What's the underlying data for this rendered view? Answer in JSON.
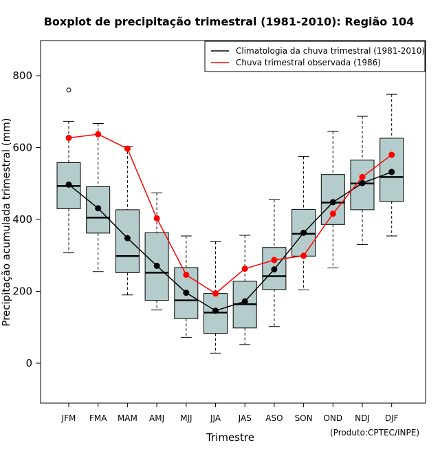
{
  "chart_data": {
    "type": "boxplot",
    "title": "Boxplot de precipitação trimestral (1981-2010): Região 104",
    "xlabel": "Trimestre",
    "ylabel": "Precipitação acumulada trimestral (mm)",
    "ylim": [
      -110,
      900
    ],
    "yticks": [
      0,
      200,
      400,
      600,
      800
    ],
    "categories": [
      "JFM",
      "FMA",
      "MAM",
      "AMJ",
      "MJJ",
      "JJA",
      "JAS",
      "ASO",
      "SON",
      "OND",
      "NDJ",
      "DJF"
    ],
    "boxes": [
      {
        "whisker_low": 307,
        "q1": 430,
        "median": 493,
        "q3": 558,
        "whisker_high": 673,
        "outliers": [
          760
        ]
      },
      {
        "whisker_low": 255,
        "q1": 362,
        "median": 405,
        "q3": 491,
        "whisker_high": 667,
        "outliers": []
      },
      {
        "whisker_low": 190,
        "q1": 252,
        "median": 298,
        "q3": 427,
        "whisker_high": 603,
        "outliers": []
      },
      {
        "whisker_low": 148,
        "q1": 175,
        "median": 252,
        "q3": 363,
        "whisker_high": 474,
        "outliers": []
      },
      {
        "whisker_low": 72,
        "q1": 124,
        "median": 175,
        "q3": 266,
        "whisker_high": 354,
        "outliers": []
      },
      {
        "whisker_low": 28,
        "q1": 83,
        "median": 141,
        "q3": 194,
        "whisker_high": 338,
        "outliers": []
      },
      {
        "whisker_low": 52,
        "q1": 98,
        "median": 164,
        "q3": 228,
        "whisker_high": 356,
        "outliers": []
      },
      {
        "whisker_low": 102,
        "q1": 205,
        "median": 242,
        "q3": 322,
        "whisker_high": 455,
        "outliers": []
      },
      {
        "whisker_low": 204,
        "q1": 298,
        "median": 360,
        "q3": 428,
        "whisker_high": 575,
        "outliers": []
      },
      {
        "whisker_low": 265,
        "q1": 386,
        "median": 447,
        "q3": 525,
        "whisker_high": 645,
        "outliers": []
      },
      {
        "whisker_low": 330,
        "q1": 427,
        "median": 500,
        "q3": 565,
        "whisker_high": 687,
        "outliers": []
      },
      {
        "whisker_low": 354,
        "q1": 450,
        "median": 518,
        "q3": 626,
        "whisker_high": 748,
        "outliers": []
      }
    ],
    "series": [
      {
        "name": "Climatologia da chuva trimestral (1981-2010)",
        "color": "#000000",
        "values": [
          497,
          431,
          348,
          271,
          196,
          146,
          172,
          261,
          363,
          448,
          501,
          532
        ]
      },
      {
        "name": "Chuva trimestral observada (1986)",
        "color": "#ff0000",
        "values": [
          627,
          637,
          597,
          403,
          246,
          194,
          263,
          287,
          299,
          416,
          518,
          580
        ]
      }
    ],
    "box_fill": "#b4cccc",
    "legend_position": "top-right",
    "credit": "(Produto:CPTEC/INPE)"
  }
}
